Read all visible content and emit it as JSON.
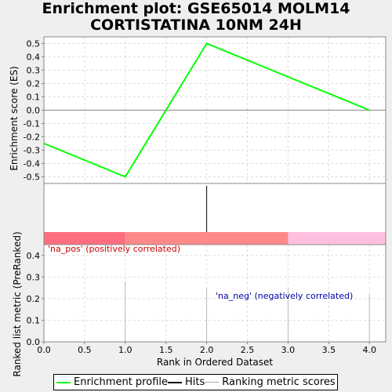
{
  "title_line1": "Enrichment plot: GSE65014 MOLM14",
  "title_line2": "CORTISTATINA 10NM 24H",
  "colors": {
    "es_line": "#00ff00",
    "hits": "#000000",
    "metric": "#bbbbbb",
    "grid": "#dddddd",
    "pos_bar": "#ff6e7e",
    "mid_bar": "#ff8888",
    "neg_bar": "#ffc0e0",
    "pos_label": "#cc0000",
    "neg_label": "#0000aa"
  },
  "chart_data": {
    "type": "line",
    "x": [
      0,
      1,
      2,
      3,
      4
    ],
    "es_values": [
      -0.25,
      -0.5,
      0.5,
      0.25,
      0.0
    ],
    "xlabel": "Rank in Ordered Dataset",
    "ylabel_top": "Enrichment score (ES)",
    "ylabel_bottom": "Ranked list metric (PreRanked)",
    "xlim": [
      0,
      4.2
    ],
    "ylim_top": [
      -0.55,
      0.55
    ],
    "ylim_bottom": [
      0,
      0.45
    ],
    "x_ticks": [
      "0.0",
      "0.5",
      "1.0",
      "1.5",
      "2.0",
      "2.5",
      "3.0",
      "3.5",
      "4.0"
    ],
    "x_tick_values": [
      0,
      0.5,
      1,
      1.5,
      2,
      2.5,
      3,
      3.5,
      4
    ],
    "y_ticks_top": [
      "0.5",
      "0.4",
      "0.3",
      "0.2",
      "0.1",
      "0.0",
      "-0.1",
      "-0.2",
      "-0.3",
      "-0.4",
      "-0.5"
    ],
    "y_tick_values_top": [
      0.5,
      0.4,
      0.3,
      0.2,
      0.1,
      0.0,
      -0.1,
      -0.2,
      -0.3,
      -0.4,
      -0.5
    ],
    "y_ticks_bottom": [
      "0.4",
      "0.3",
      "0.2",
      "0.1",
      "0.0"
    ],
    "y_tick_values_bottom": [
      0.4,
      0.3,
      0.2,
      0.1,
      0.0
    ],
    "hits": [
      2
    ],
    "metric_bars": [
      {
        "x": 1,
        "value": 0.28
      },
      {
        "x": 2,
        "value": 0.25
      },
      {
        "x": 3,
        "value": 0.25
      },
      {
        "x": 4,
        "value": 0.22
      }
    ],
    "color_segments": [
      {
        "from": 0,
        "to": 1,
        "key": "pos_bar"
      },
      {
        "from": 1,
        "to": 3,
        "key": "mid_bar"
      },
      {
        "from": 3,
        "to": 4.2,
        "key": "neg_bar"
      }
    ],
    "pos_label": "'na_pos' (positively correlated)",
    "neg_label": "'na_neg' (negatively correlated)",
    "legend": [
      "Enrichment profile",
      "Hits",
      "Ranking metric scores"
    ]
  }
}
